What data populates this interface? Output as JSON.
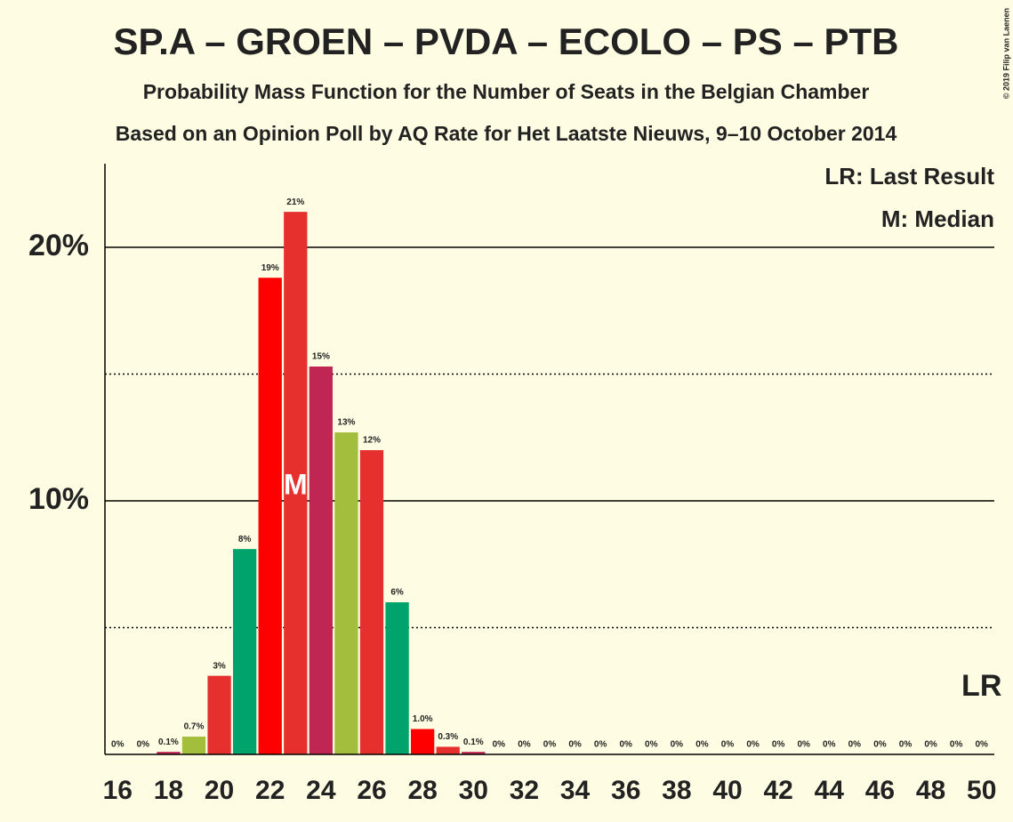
{
  "chart_data": {
    "type": "bar",
    "title": "SP.A – GROEN – PVDA – ECOLO – PS – PTB",
    "subtitle": "Probability Mass Function for the Number of Seats in the Belgian Chamber",
    "subtitle2": "Based on an Opinion Poll by AQ Rate for Het Laatste Nieuws, 9–10 October 2014",
    "legend": [
      "LR: Last Result",
      "M: Median"
    ],
    "copyright": "© 2019 Filip van Laenen",
    "categories": [
      16,
      null,
      18,
      null,
      20,
      null,
      22,
      null,
      24,
      null,
      26,
      null,
      28,
      null,
      30,
      null,
      32,
      null,
      34,
      null,
      36,
      null,
      38,
      null,
      40,
      null,
      42,
      null,
      44,
      null,
      46,
      null,
      48,
      null,
      50
    ],
    "values": [
      0,
      0,
      0.1,
      0.7,
      3.1,
      8.1,
      18.8,
      21.4,
      15.3,
      12.7,
      12.0,
      6.0,
      1.0,
      0.3,
      0.1,
      0,
      0,
      0,
      0,
      0,
      0,
      0,
      0,
      0,
      0,
      0,
      0,
      0,
      0,
      0,
      0,
      0,
      0,
      0,
      0
    ],
    "value_labels": [
      "0%",
      "0%",
      "0.1%",
      "0.7%",
      "3%",
      "8%",
      "19%",
      "21%",
      "15%",
      "13%",
      "12%",
      "6%",
      "1.0%",
      "0.3%",
      "0.1%",
      "0%",
      "0%",
      "0%",
      "0%",
      "0%",
      "0%",
      "0%",
      "0%",
      "0%",
      "0%",
      "0%",
      "0%",
      "0%",
      "0%",
      "0%",
      "0%",
      "0%",
      "0%",
      "0%",
      "0%"
    ],
    "colors": [
      "#ff0000",
      "#e5302e",
      "#c02654",
      "#a3bd3c",
      "#e5302e",
      "#00a36c",
      "#ff0000",
      "#e5302e",
      "#c02654",
      "#a3bd3c",
      "#e5302e",
      "#00a36c",
      "#ff0000",
      "#e5302e",
      "#c02654",
      "#a3bd3c",
      "#e5302e",
      "#00a36c",
      "#ff0000",
      "#e5302e",
      "#c02654",
      "#a3bd3c",
      "#e5302e",
      "#00a36c",
      "#ff0000",
      "#e5302e",
      "#c02654",
      "#a3bd3c",
      "#e5302e",
      "#00a36c",
      "#ff0000",
      "#e5302e",
      "#c02654",
      "#a3bd3c",
      "#e5302e"
    ],
    "median_index": 7,
    "median_label": "M",
    "last_result_index": 34,
    "last_result_label": "LR",
    "ylim": [
      0,
      23.3
    ],
    "yticks": [
      {
        "value": 10,
        "label": "10%"
      },
      {
        "value": 20,
        "label": "20%"
      }
    ],
    "minor_yticks": [
      5,
      15
    ],
    "grid": true
  }
}
